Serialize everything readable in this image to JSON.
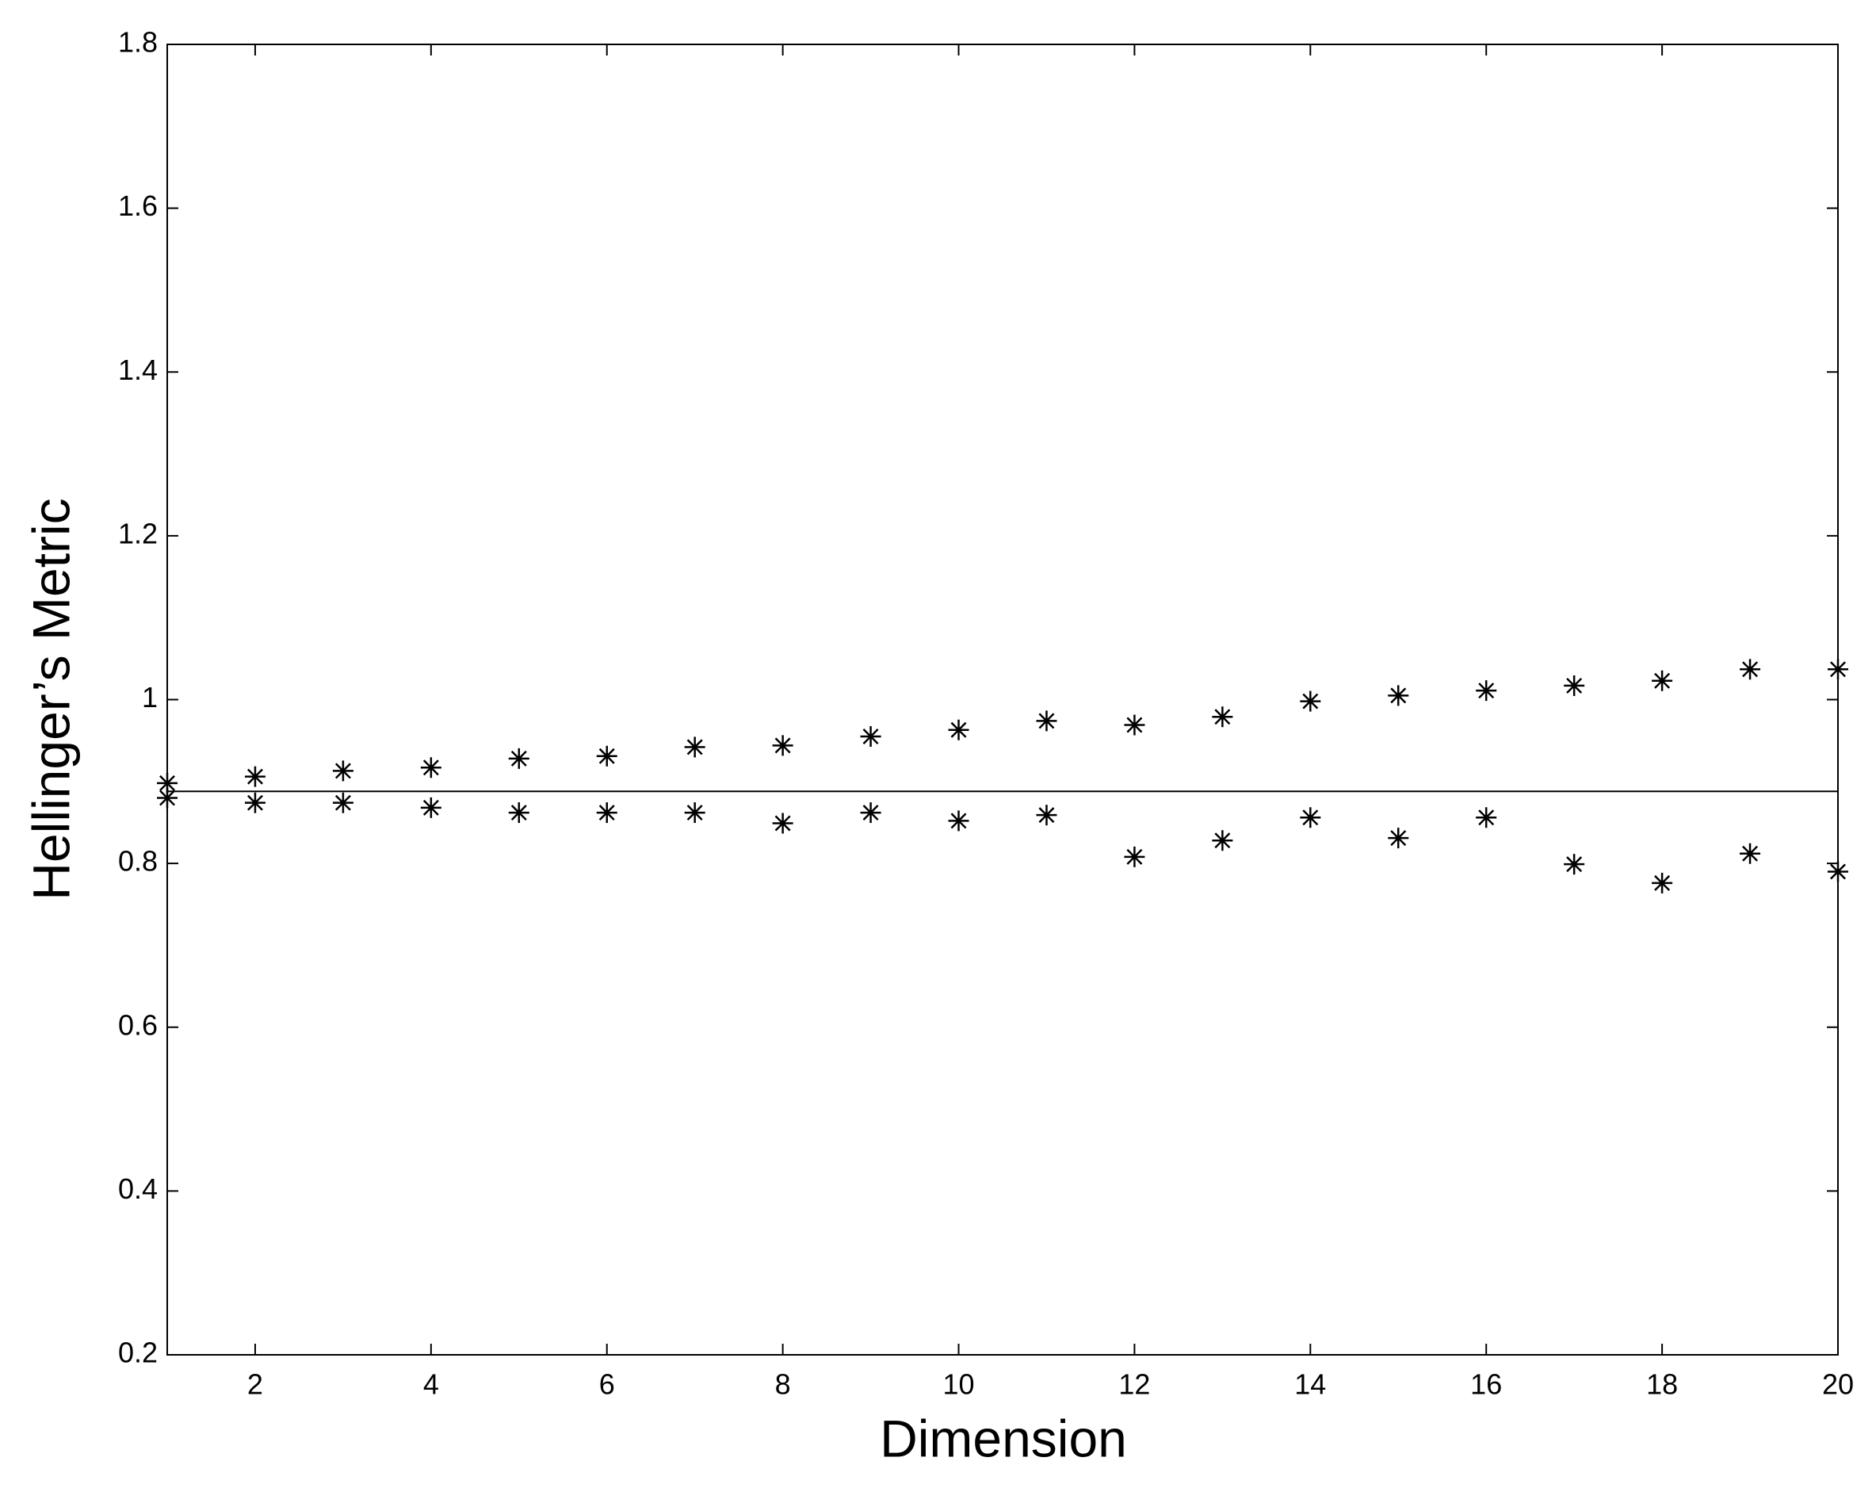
{
  "chart_data": {
    "type": "scatter",
    "xlabel": "Dimension",
    "ylabel": "Hellinger’s Metric",
    "x": [
      1,
      2,
      3,
      4,
      5,
      6,
      7,
      8,
      9,
      10,
      11,
      12,
      13,
      14,
      15,
      16,
      17,
      18,
      19,
      20
    ],
    "series": [
      {
        "color": "#000000",
        "values": [
          0.898,
          0.906,
          0.913,
          0.917,
          0.928,
          0.931,
          0.942,
          0.944,
          0.955,
          0.963,
          0.974,
          0.969,
          0.979,
          0.998,
          1.005,
          1.011,
          1.017,
          1.023,
          1.037,
          1.037
        ]
      },
      {
        "color": "#000000",
        "values": [
          0.88,
          0.874,
          0.874,
          0.868,
          0.862,
          0.862,
          0.862,
          0.849,
          0.862,
          0.852,
          0.859,
          0.808,
          0.828,
          0.856,
          0.831,
          0.856,
          0.799,
          0.776,
          0.812,
          0.79
        ]
      }
    ],
    "hline": 0.888,
    "xlim": [
      1,
      20
    ],
    "xticks": [
      2,
      4,
      6,
      8,
      10,
      12,
      14,
      16,
      18,
      20
    ],
    "ylim": [
      0.2,
      1.8
    ],
    "yticks": [
      0.2,
      0.4,
      0.6,
      0.8,
      1,
      1.2,
      1.4,
      1.6,
      1.8
    ],
    "grid": false
  }
}
